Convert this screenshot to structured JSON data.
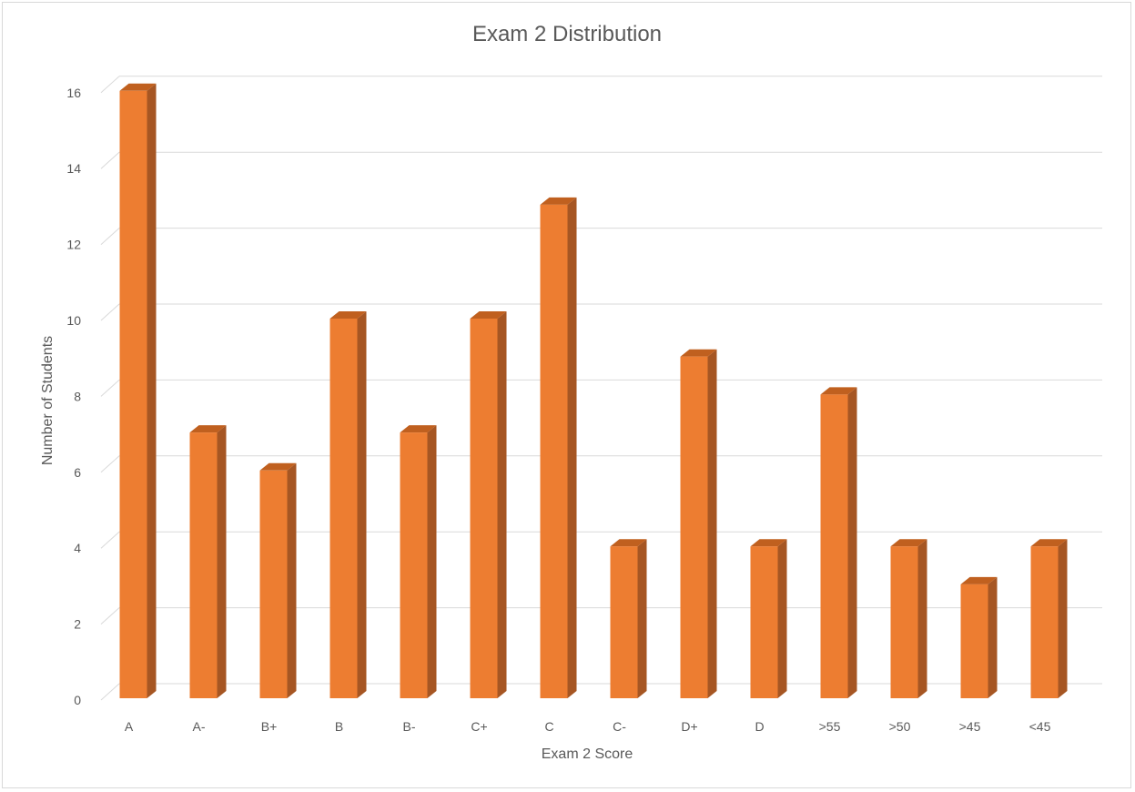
{
  "chart_data": {
    "type": "bar",
    "title": "Exam 2 Distribution",
    "xlabel": "Exam 2 Score",
    "ylabel": "Number of Students",
    "categories": [
      "A",
      "A-",
      "B+",
      "B",
      "B-",
      "C+",
      "C",
      "C-",
      "D+",
      "D",
      ">55",
      ">50",
      ">45",
      "<45"
    ],
    "values": [
      16,
      7,
      6,
      10,
      7,
      10,
      13,
      4,
      9,
      4,
      8,
      4,
      3,
      4
    ],
    "ylim": [
      0,
      16
    ],
    "yticks": [
      0,
      2,
      4,
      6,
      8,
      10,
      12,
      14,
      16
    ],
    "grid": true,
    "legend": "none",
    "colors": {
      "bar_front": "#ed7d31",
      "bar_side": "#a65623",
      "bar_top": "#c0601f",
      "grid": "#d9d9d9",
      "text": "#595959"
    }
  }
}
